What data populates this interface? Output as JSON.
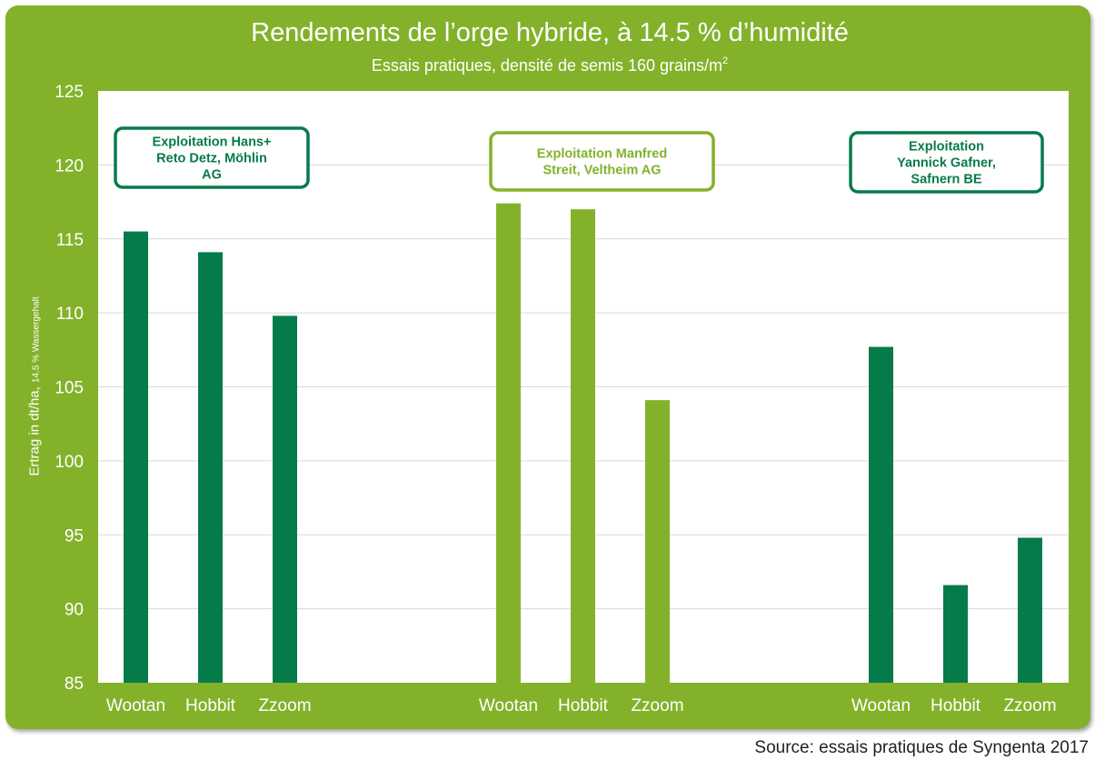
{
  "chart_data": {
    "type": "bar",
    "title": "Rendements de l’orge hybride, à 14.5 % d’humidité",
    "subtitle": "Essais pratiques, densité de semis 160 grains/m",
    "subtitle_sup": "2",
    "ylabel": "Ertrag in dt/ha,",
    "ylabel_small": "14.5 % Wassergehalt",
    "ylim": [
      85,
      125
    ],
    "yticks": [
      "85",
      "90",
      "95",
      "100",
      "105",
      "110",
      "115",
      "120",
      "125"
    ],
    "grid": true,
    "groups": [
      {
        "name_lines": [
          "Exploitation Hans+",
          "Reto Detz, Möhlin",
          "AG"
        ],
        "color": "#067b4a",
        "categories": [
          "Wootan",
          "Hobbit",
          "Zzoom"
        ],
        "values": [
          115.5,
          114.1,
          109.8
        ]
      },
      {
        "name_lines": [
          "Exploitation Manfred",
          "Streit, Veltheim AG"
        ],
        "color": "#83b22a",
        "categories": [
          "Wootan",
          "Hobbit",
          "Zzoom"
        ],
        "values": [
          117.4,
          117.0,
          104.1
        ]
      },
      {
        "name_lines": [
          "Exploitation",
          "Yannick Gafner,",
          "Safnern BE"
        ],
        "color": "#067b4a",
        "categories": [
          "Wootan",
          "Hobbit",
          "Zzoom"
        ],
        "values": [
          107.7,
          91.6,
          94.8
        ]
      }
    ],
    "source": "Source: essais pratiques de Syngenta  2017"
  },
  "colors": {
    "background_panel": "#83b22a",
    "dark_green": "#067b4a",
    "light_green": "#83b22a",
    "grid": "#d9d9d9"
  }
}
